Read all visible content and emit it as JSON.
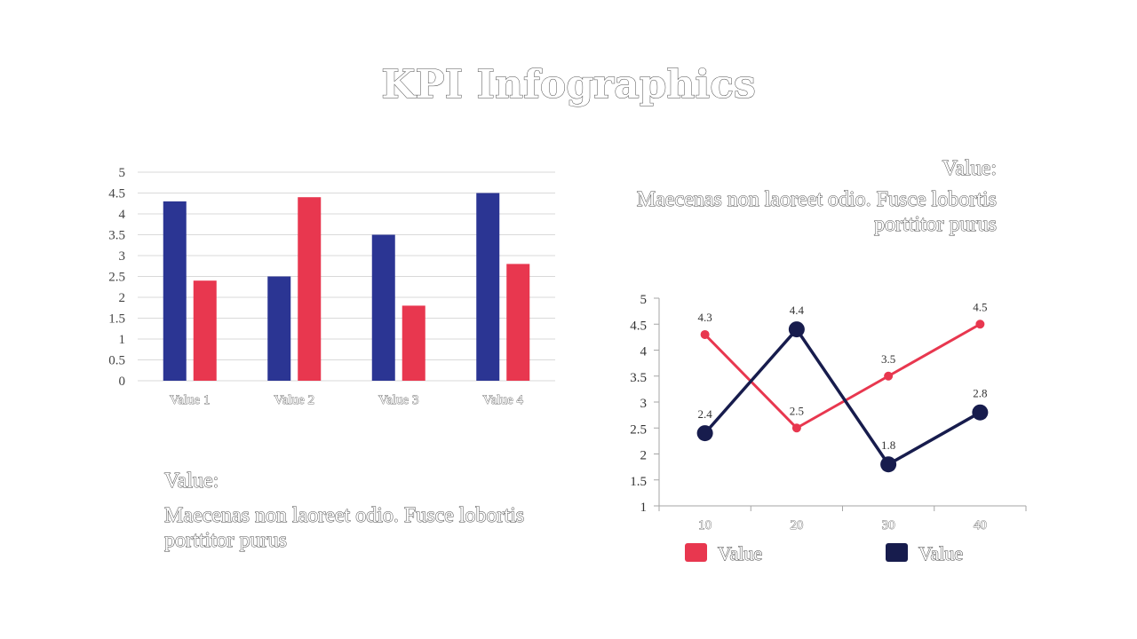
{
  "title": "KPI Infographics",
  "colors": {
    "blue": "#2b3593",
    "red": "#e8374f",
    "navy": "#171c4d",
    "grid": "#d9d9d9",
    "axis": "#a6a6a6"
  },
  "left_text": {
    "heading": "Value:",
    "body": "Maecenas non laoreet odio. Fusce lobortis porttitor purus"
  },
  "right_text": {
    "heading": "Value:",
    "body": "Maecenas non laoreet odio. Fusce lobortis porttitor purus"
  },
  "chart_data": [
    {
      "type": "bar",
      "categories": [
        "Value 1",
        "Value 2",
        "Value 3",
        "Value 4"
      ],
      "series": [
        {
          "values": [
            4.3,
            2.5,
            3.5,
            4.5
          ],
          "color": "#2b3593"
        },
        {
          "values": [
            2.4,
            4.4,
            1.8,
            2.8
          ],
          "color": "#e8374f"
        }
      ],
      "ylim": [
        0,
        5
      ],
      "yticks": [
        "0",
        "0.5",
        "1",
        "1.5",
        "2",
        "2.5",
        "3",
        "3.5",
        "4",
        "4.5",
        "5"
      ],
      "grid": true
    },
    {
      "type": "line",
      "x": [
        "10",
        "20",
        "30",
        "40"
      ],
      "series": [
        {
          "name": "Value",
          "values": [
            4.3,
            2.5,
            3.5,
            4.5
          ],
          "color": "#e8374f",
          "labels": [
            "4.3",
            "2.5",
            "3.5",
            "4.5"
          ]
        },
        {
          "name": "Value",
          "values": [
            2.4,
            4.4,
            1.8,
            2.8
          ],
          "color": "#171c4d",
          "labels": [
            "2.4",
            "4.4",
            "1.8",
            "2.8"
          ]
        }
      ],
      "ylim": [
        1,
        5
      ],
      "yticks": [
        "1",
        "1.5",
        "2",
        "2.5",
        "3",
        "3.5",
        "4",
        "4.5",
        "5"
      ],
      "legend": "bottom",
      "grid": false
    }
  ]
}
